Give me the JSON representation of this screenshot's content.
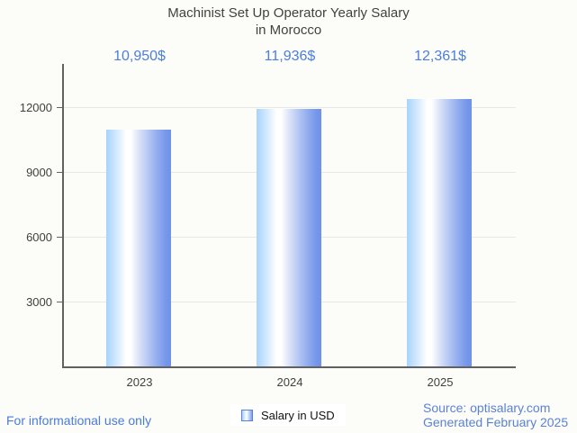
{
  "chart_data": {
    "type": "bar",
    "title": "Machinist Set Up Operator Yearly Salary in Morocco",
    "title_lines": [
      "Machinist Set Up Operator Yearly Salary",
      "in Morocco"
    ],
    "categories": [
      "2023",
      "2024",
      "2025"
    ],
    "series": [
      {
        "name": "Salary in USD",
        "values": [
          10950,
          11936,
          12361
        ]
      }
    ],
    "value_labels": [
      "10,950$",
      "11,936$",
      "12,361$"
    ],
    "xlabel": "",
    "ylabel": "",
    "ylim": [
      0,
      14000
    ],
    "yticks": [
      3000,
      6000,
      9000,
      12000
    ],
    "ytick_labels": [
      "3000",
      "6000",
      "9000",
      "12000"
    ],
    "grid": true,
    "legend_position": "bottom",
    "colors": {
      "bar_left_edge": "#a7d3fb",
      "bar_center": "#ffffff",
      "bar_right_edge": "#6f92e8",
      "value_label_blue": "#4b7ee0",
      "axis_gray": "#616161",
      "gridline_gray": "#e8e8e5",
      "title_gray": "#424242",
      "background": "#fcfcf8"
    }
  },
  "legend": {
    "label": "Salary in USD"
  },
  "footer": {
    "left": "For informational use only",
    "source": "Source: optisalary.com",
    "generated": "Generated February 2025"
  }
}
